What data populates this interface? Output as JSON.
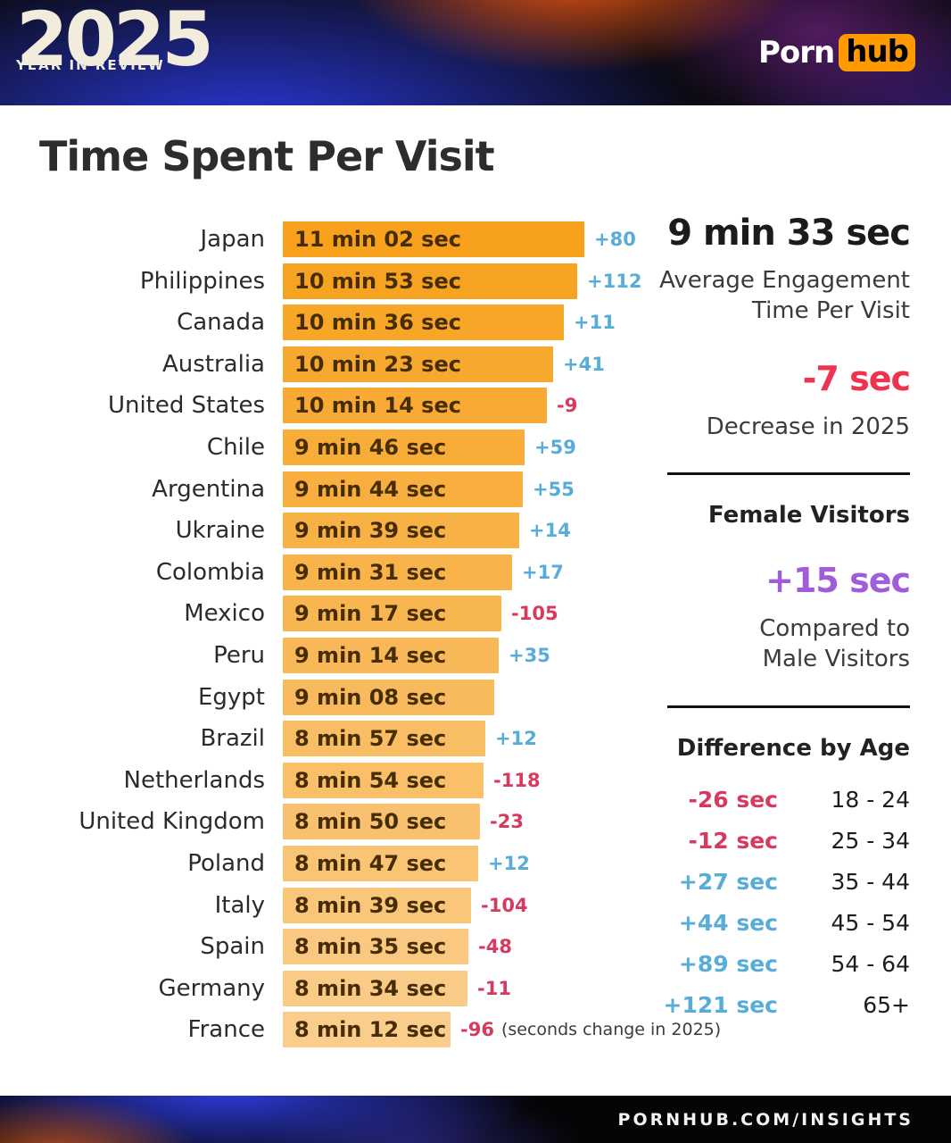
{
  "header": {
    "year": "2025",
    "tagline": "YEAR IN REVIEW",
    "brand_part1": "Porn",
    "brand_part2": "hub"
  },
  "title": "Time Spent Per Visit",
  "chart_data": {
    "type": "bar",
    "title": "Time Spent Per Visit",
    "orientation": "horizontal",
    "value_unit": "minutes:seconds per visit",
    "note": "(seconds change in 2025)",
    "rows": [
      {
        "country": "Japan",
        "time": "11 min 02 sec",
        "seconds": 662,
        "change": "+80"
      },
      {
        "country": "Philippines",
        "time": "10 min 53 sec",
        "seconds": 653,
        "change": "+112"
      },
      {
        "country": "Canada",
        "time": "10 min 36 sec",
        "seconds": 636,
        "change": "+11"
      },
      {
        "country": "Australia",
        "time": "10 min 23 sec",
        "seconds": 623,
        "change": "+41"
      },
      {
        "country": "United States",
        "time": "10 min 14 sec",
        "seconds": 614,
        "change": "-9"
      },
      {
        "country": "Chile",
        "time": "9 min 46 sec",
        "seconds": 586,
        "change": "+59"
      },
      {
        "country": "Argentina",
        "time": "9 min 44 sec",
        "seconds": 584,
        "change": "+55"
      },
      {
        "country": "Ukraine",
        "time": "9 min 39 sec",
        "seconds": 579,
        "change": "+14"
      },
      {
        "country": "Colombia",
        "time": "9 min 31 sec",
        "seconds": 571,
        "change": "+17"
      },
      {
        "country": "Mexico",
        "time": "9 min 17 sec",
        "seconds": 557,
        "change": "-105"
      },
      {
        "country": "Peru",
        "time": "9 min 14 sec",
        "seconds": 554,
        "change": "+35"
      },
      {
        "country": "Egypt",
        "time": "9 min 08 sec",
        "seconds": 548,
        "change": null
      },
      {
        "country": "Brazil",
        "time": "8 min 57 sec",
        "seconds": 537,
        "change": "+12"
      },
      {
        "country": "Netherlands",
        "time": "8 min 54 sec",
        "seconds": 534,
        "change": "-118"
      },
      {
        "country": "United Kingdom",
        "time": "8 min 50 sec",
        "seconds": 530,
        "change": "-23"
      },
      {
        "country": "Poland",
        "time": "8 min 47 sec",
        "seconds": 527,
        "change": "+12"
      },
      {
        "country": "Italy",
        "time": "8 min 39 sec",
        "seconds": 519,
        "change": "-104"
      },
      {
        "country": "Spain",
        "time": "8 min 35 sec",
        "seconds": 515,
        "change": "-48"
      },
      {
        "country": "Germany",
        "time": "8 min 34 sec",
        "seconds": 514,
        "change": "-11"
      },
      {
        "country": "France",
        "time": "8 min 12 sec",
        "seconds": 492,
        "change": "-96"
      }
    ],
    "colors": {
      "bar_top": "#F7A11C",
      "bar_bottom": "#FACD8C",
      "bar_text": "#462D05",
      "positive": "#58ACD8",
      "negative": "#D63A5E"
    }
  },
  "stats": {
    "avg_value": "9 min 33 sec",
    "avg_label_line1": "Average Engagement",
    "avg_label_line2": "Time Per Visit",
    "decrease_value": "-7 sec",
    "decrease_label": "Decrease in 2025",
    "decrease_color": "#EE3350",
    "female_head": "Female Visitors",
    "female_value": "+15 sec",
    "female_color": "#A05CD9",
    "female_label_line1": "Compared to",
    "female_label_line2": "Male Visitors",
    "age_head": "Difference by Age",
    "age_rows": [
      {
        "value": "-26 sec",
        "range": "18 - 24"
      },
      {
        "value": "-12 sec",
        "range": "25 - 34"
      },
      {
        "value": "+27 sec",
        "range": "35 - 44"
      },
      {
        "value": "+44 sec",
        "range": "45 - 54"
      },
      {
        "value": "+89 sec",
        "range": "54 - 64"
      },
      {
        "value": "+121 sec",
        "range": "65+"
      }
    ]
  },
  "footer": {
    "url": "PORNHUB.COM/INSIGHTS"
  }
}
